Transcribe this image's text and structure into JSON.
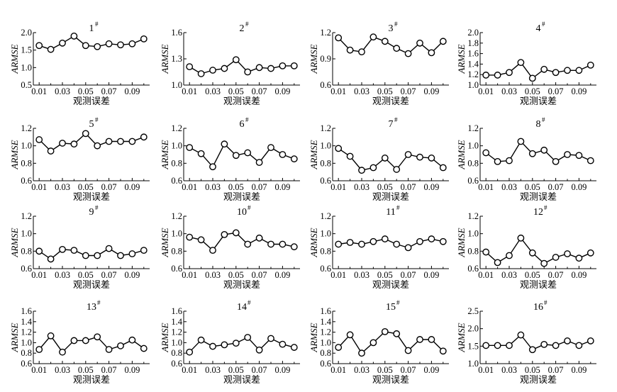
{
  "chart_data": [
    {
      "type": "line",
      "title": "1",
      "title_sup": "#",
      "xlabel": "观测误差",
      "ylabel": "ARMSE",
      "ylim": [
        0.5,
        2.0
      ],
      "yticks": [
        "0.5",
        "1.0",
        "1.5",
        "2.0"
      ],
      "xticks": [
        "0.01",
        "0.03",
        "0.05",
        "0.07",
        "0.09"
      ],
      "x": [
        0.01,
        0.02,
        0.03,
        0.04,
        0.05,
        0.06,
        0.07,
        0.08,
        0.09,
        0.1
      ],
      "values": [
        1.63,
        1.52,
        1.7,
        1.9,
        1.63,
        1.6,
        1.68,
        1.65,
        1.68,
        1.82
      ]
    },
    {
      "type": "line",
      "title": "2",
      "title_sup": "#",
      "xlabel": "观测误差",
      "ylabel": "ARMSE",
      "ylim": [
        1.0,
        1.6
      ],
      "yticks": [
        "1.0",
        "1.3",
        "1.6"
      ],
      "xticks": [
        "0.01",
        "0.03",
        "0.05",
        "0.07",
        "0.09"
      ],
      "x": [
        0.01,
        0.02,
        0.03,
        0.04,
        0.05,
        0.06,
        0.07,
        0.08,
        0.09,
        0.1
      ],
      "values": [
        1.21,
        1.13,
        1.17,
        1.19,
        1.29,
        1.15,
        1.2,
        1.19,
        1.22,
        1.22
      ]
    },
    {
      "type": "line",
      "title": "3",
      "title_sup": "#",
      "xlabel": "观测误差",
      "ylabel": "ARMSE",
      "ylim": [
        0.6,
        1.2
      ],
      "yticks": [
        "0.6",
        "0.9",
        "1.2"
      ],
      "xticks": [
        "0.01",
        "0.03",
        "0.05",
        "0.07",
        "0.09"
      ],
      "x": [
        0.01,
        0.02,
        0.03,
        0.04,
        0.05,
        0.06,
        0.07,
        0.08,
        0.09,
        0.1
      ],
      "values": [
        1.14,
        1.0,
        0.98,
        1.15,
        1.1,
        1.02,
        0.96,
        1.08,
        0.97,
        1.1
      ]
    },
    {
      "type": "line",
      "title": "4",
      "title_sup": "#",
      "xlabel": "观测误差",
      "ylabel": "ARMSE",
      "ylim": [
        1.0,
        2.0
      ],
      "yticks": [
        "1.0",
        "1.2",
        "1.4",
        "1.6",
        "1.8",
        "2.0"
      ],
      "xticks": [
        "0.01",
        "0.03",
        "0.05",
        "0.07",
        "0.09"
      ],
      "x": [
        0.01,
        0.02,
        0.03,
        0.04,
        0.05,
        0.06,
        0.07,
        0.08,
        0.09,
        0.1
      ],
      "values": [
        1.19,
        1.19,
        1.24,
        1.43,
        1.13,
        1.3,
        1.24,
        1.28,
        1.28,
        1.38
      ]
    },
    {
      "type": "line",
      "title": "5",
      "title_sup": "#",
      "xlabel": "观测误差",
      "ylabel": "ARMSE",
      "ylim": [
        0.6,
        1.2
      ],
      "yticks": [
        "0.6",
        "0.8",
        "1.0",
        "1.2"
      ],
      "xticks": [
        "0.01",
        "0.03",
        "0.05",
        "0.07",
        "0.09"
      ],
      "x": [
        0.01,
        0.02,
        0.03,
        0.04,
        0.05,
        0.06,
        0.07,
        0.08,
        0.09,
        0.1
      ],
      "values": [
        1.07,
        0.94,
        1.03,
        1.02,
        1.14,
        1.0,
        1.05,
        1.05,
        1.05,
        1.1
      ]
    },
    {
      "type": "line",
      "title": "6",
      "title_sup": "#",
      "xlabel": "观测误差",
      "ylabel": "ARMSE",
      "ylim": [
        0.6,
        1.2
      ],
      "yticks": [
        "0.6",
        "0.8",
        "1.0",
        "1.2"
      ],
      "xticks": [
        "0.01",
        "0.03",
        "0.05",
        "0.07",
        "0.09"
      ],
      "x": [
        0.01,
        0.02,
        0.03,
        0.04,
        0.05,
        0.06,
        0.07,
        0.08,
        0.09,
        0.1
      ],
      "values": [
        0.98,
        0.91,
        0.76,
        1.02,
        0.89,
        0.92,
        0.81,
        0.98,
        0.9,
        0.85
      ]
    },
    {
      "type": "line",
      "title": "7",
      "title_sup": "#",
      "xlabel": "观测误差",
      "ylabel": "ARMSE",
      "ylim": [
        0.6,
        1.2
      ],
      "yticks": [
        "0.6",
        "0.8",
        "1.0",
        "1.2"
      ],
      "xticks": [
        "0.01",
        "0.03",
        "0.05",
        "0.07",
        "0.09"
      ],
      "x": [
        0.01,
        0.02,
        0.03,
        0.04,
        0.05,
        0.06,
        0.07,
        0.08,
        0.09,
        0.1
      ],
      "values": [
        0.97,
        0.88,
        0.72,
        0.75,
        0.86,
        0.73,
        0.9,
        0.87,
        0.86,
        0.75
      ]
    },
    {
      "type": "line",
      "title": "8",
      "title_sup": "#",
      "xlabel": "观测误差",
      "ylabel": "ARMSE",
      "ylim": [
        0.6,
        1.2
      ],
      "yticks": [
        "0.6",
        "0.8",
        "1.0",
        "1.2"
      ],
      "xticks": [
        "0.01",
        "0.03",
        "0.05",
        "0.07",
        "0.09"
      ],
      "x": [
        0.01,
        0.02,
        0.03,
        0.04,
        0.05,
        0.06,
        0.07,
        0.08,
        0.09,
        0.1
      ],
      "values": [
        0.92,
        0.82,
        0.83,
        1.05,
        0.91,
        0.95,
        0.82,
        0.9,
        0.89,
        0.83
      ]
    },
    {
      "type": "line",
      "title": "9",
      "title_sup": "#",
      "xlabel": "观测误差",
      "ylabel": "ARMSE",
      "ylim": [
        0.6,
        1.2
      ],
      "yticks": [
        "0.6",
        "0.8",
        "1.0",
        "1.2"
      ],
      "xticks": [
        "0.01",
        "0.03",
        "0.05",
        "0.07",
        "0.09"
      ],
      "x": [
        0.01,
        0.02,
        0.03,
        0.04,
        0.05,
        0.06,
        0.07,
        0.08,
        0.09,
        0.1
      ],
      "values": [
        0.8,
        0.71,
        0.82,
        0.81,
        0.75,
        0.75,
        0.83,
        0.75,
        0.77,
        0.81
      ]
    },
    {
      "type": "line",
      "title": "10",
      "title_sup": "#",
      "xlabel": "观测误差",
      "ylabel": "ARMSE",
      "ylim": [
        0.6,
        1.2
      ],
      "yticks": [
        "0.6",
        "0.8",
        "1.0",
        "1.2"
      ],
      "xticks": [
        "0.01",
        "0.03",
        "0.05",
        "0.07",
        "0.09"
      ],
      "x": [
        0.01,
        0.02,
        0.03,
        0.04,
        0.05,
        0.06,
        0.07,
        0.08,
        0.09,
        0.1
      ],
      "values": [
        0.96,
        0.93,
        0.81,
        0.99,
        1.01,
        0.88,
        0.95,
        0.88,
        0.88,
        0.85
      ]
    },
    {
      "type": "line",
      "title": "11",
      "title_sup": "#",
      "xlabel": "观测误差",
      "ylabel": "ARMSE",
      "ylim": [
        0.6,
        1.2
      ],
      "yticks": [
        "0.6",
        "0.8",
        "1.0",
        "1.2"
      ],
      "xticks": [
        "0.01",
        "0.03",
        "0.05",
        "0.07",
        "0.09"
      ],
      "x": [
        0.01,
        0.02,
        0.03,
        0.04,
        0.05,
        0.06,
        0.07,
        0.08,
        0.09,
        0.1
      ],
      "values": [
        0.88,
        0.9,
        0.88,
        0.91,
        0.94,
        0.88,
        0.84,
        0.91,
        0.94,
        0.91
      ]
    },
    {
      "type": "line",
      "title": "12",
      "title_sup": "#",
      "xlabel": "观测误差",
      "ylabel": "ARMSE",
      "ylim": [
        0.6,
        1.2
      ],
      "yticks": [
        "0.6",
        "0.8",
        "1.0",
        "1.2"
      ],
      "xticks": [
        "0.01",
        "0.03",
        "0.05",
        "0.07",
        "0.09"
      ],
      "x": [
        0.01,
        0.02,
        0.03,
        0.04,
        0.05,
        0.06,
        0.07,
        0.08,
        0.09,
        0.1
      ],
      "values": [
        0.79,
        0.67,
        0.75,
        0.95,
        0.78,
        0.66,
        0.73,
        0.77,
        0.72,
        0.78
      ]
    },
    {
      "type": "line",
      "title": "13",
      "title_sup": "#",
      "xlabel": "观测误差",
      "ylabel": "ARMSE",
      "ylim": [
        0.6,
        1.6
      ],
      "yticks": [
        "0.6",
        "0.8",
        "1.0",
        "1.2",
        "1.4",
        "1.6"
      ],
      "xticks": [
        "0.01",
        "0.03",
        "0.05",
        "0.07",
        "0.09"
      ],
      "x": [
        0.01,
        0.02,
        0.03,
        0.04,
        0.05,
        0.06,
        0.07,
        0.08,
        0.09,
        0.1
      ],
      "values": [
        0.87,
        1.13,
        0.82,
        1.04,
        1.04,
        1.11,
        0.87,
        0.94,
        1.05,
        0.89
      ]
    },
    {
      "type": "line",
      "title": "14",
      "title_sup": "#",
      "xlabel": "观测误差",
      "ylabel": "ARMSE",
      "ylim": [
        0.6,
        1.6
      ],
      "yticks": [
        "0.6",
        "0.8",
        "1.0",
        "1.2",
        "1.4",
        "1.6"
      ],
      "xticks": [
        "0.01",
        "0.03",
        "0.05",
        "0.07",
        "0.09"
      ],
      "x": [
        0.01,
        0.02,
        0.03,
        0.04,
        0.05,
        0.06,
        0.07,
        0.08,
        0.09,
        0.1
      ],
      "values": [
        0.82,
        1.05,
        0.93,
        0.96,
        0.99,
        1.1,
        0.86,
        1.08,
        0.97,
        0.91
      ]
    },
    {
      "type": "line",
      "title": "15",
      "title_sup": "#",
      "xlabel": "观测误差",
      "ylabel": "ARMSE",
      "ylim": [
        0.6,
        1.6
      ],
      "yticks": [
        "0.6",
        "0.8",
        "1.0",
        "1.2",
        "1.4",
        "1.6"
      ],
      "xticks": [
        "0.01",
        "0.03",
        "0.05",
        "0.07",
        "0.09"
      ],
      "x": [
        0.01,
        0.02,
        0.03,
        0.04,
        0.05,
        0.06,
        0.07,
        0.08,
        0.09,
        0.1
      ],
      "values": [
        0.91,
        1.15,
        0.8,
        1.0,
        1.21,
        1.17,
        0.85,
        1.06,
        1.06,
        0.84
      ]
    },
    {
      "type": "line",
      "title": "16",
      "title_sup": "#",
      "xlabel": "观测误差",
      "ylabel": "ARMSE",
      "ylim": [
        1.0,
        2.5
      ],
      "yticks": [
        "1.0",
        "1.5",
        "2.0",
        "2.5"
      ],
      "xticks": [
        "0.01",
        "0.03",
        "0.05",
        "0.07",
        "0.09"
      ],
      "x": [
        0.01,
        0.02,
        0.03,
        0.04,
        0.05,
        0.06,
        0.07,
        0.08,
        0.09,
        0.1
      ],
      "values": [
        1.52,
        1.52,
        1.52,
        1.82,
        1.4,
        1.55,
        1.52,
        1.65,
        1.52,
        1.65
      ]
    }
  ]
}
